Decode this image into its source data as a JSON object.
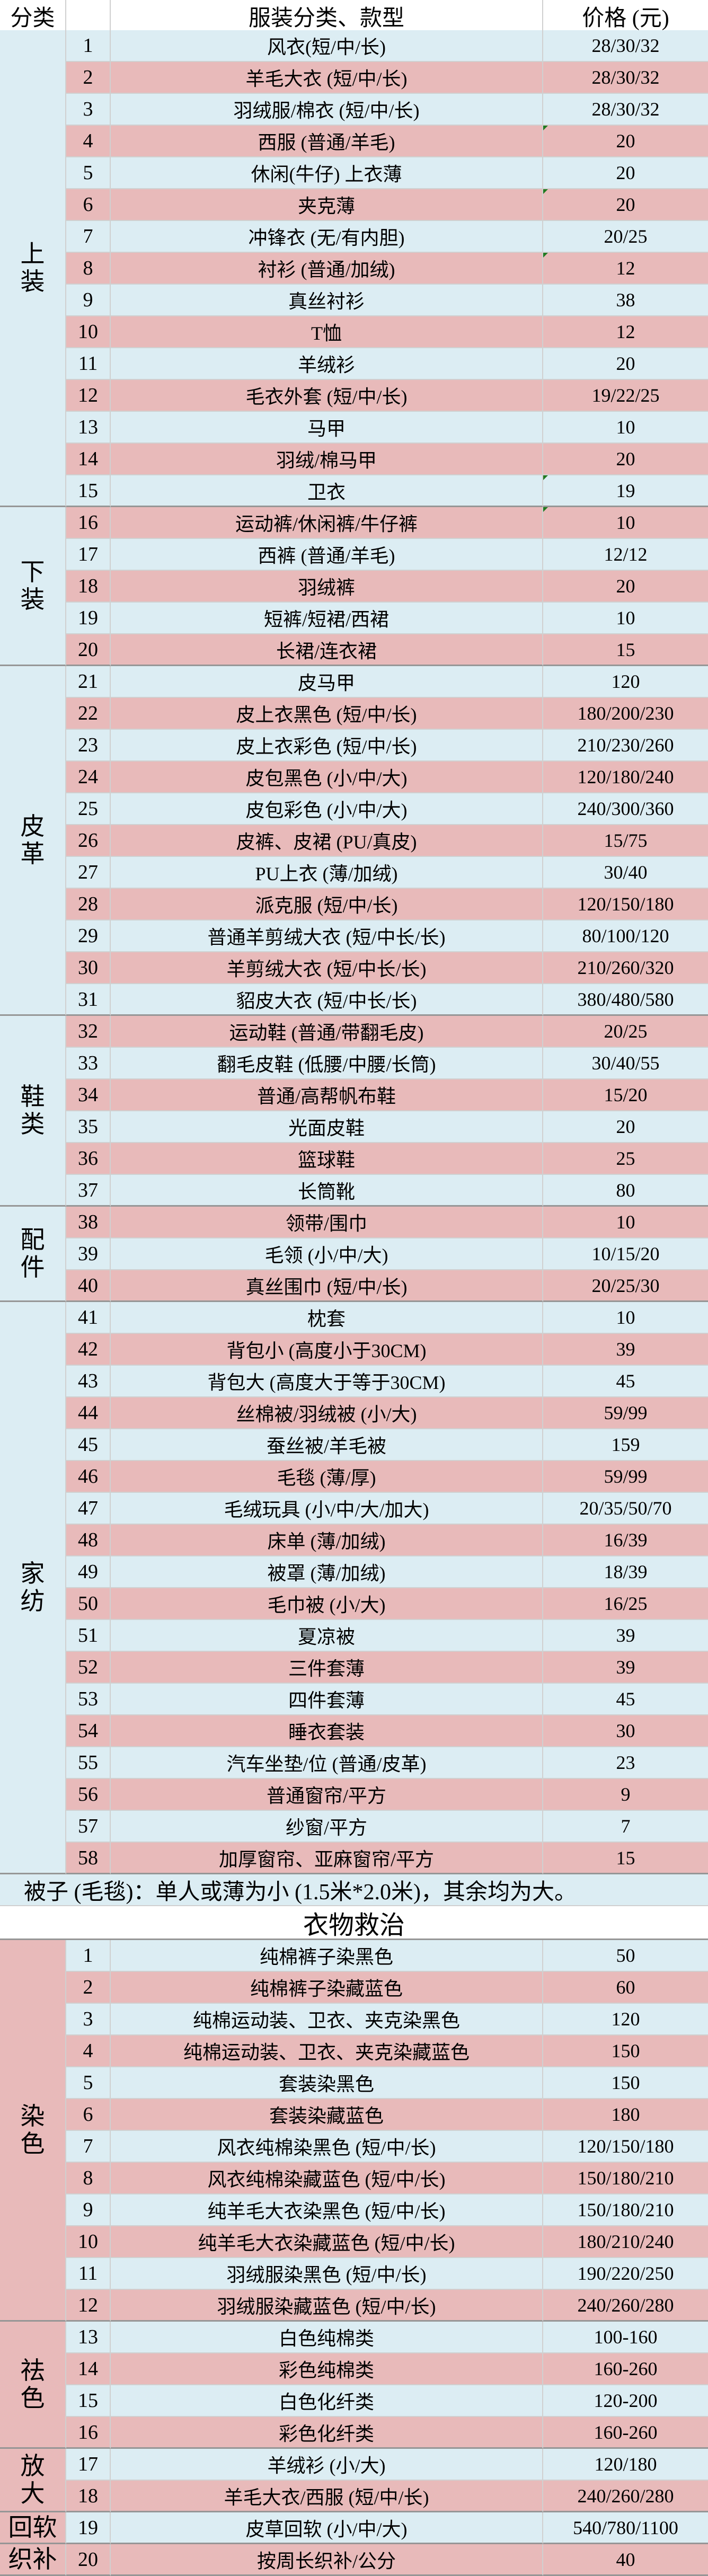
{
  "header": {
    "category": "分类",
    "number": "",
    "item": "服装分类、款型",
    "price": "价格 (元)"
  },
  "note": "被子 (毛毯)：单人或薄为小 (1.5米*2.0米)，其余均为大。",
  "rescue_title": "衣物救治",
  "flagged_rows": [
    4,
    6,
    8,
    15,
    16
  ],
  "colors": {
    "row_pink": "#e8baba",
    "row_blue": "#dcedf3",
    "grid_line": "#d0d0d0",
    "group_line": "#969696",
    "header_line": "#4a4a4a",
    "header_bg": "#ffffff",
    "flag_green": "#217a21",
    "text": "#000000"
  },
  "sections": [
    {
      "id": "main",
      "category_color": "blue",
      "groups": [
        {
          "label": "上装",
          "rows": [
            {
              "no": "1",
              "item": "风衣(短/中/长)",
              "price": "28/30/32"
            },
            {
              "no": "2",
              "item": "羊毛大衣 (短/中/长)",
              "price": "28/30/32"
            },
            {
              "no": "3",
              "item": "羽绒服/棉衣 (短/中/长)",
              "price": "28/30/32"
            },
            {
              "no": "4",
              "item": "西服 (普通/羊毛)",
              "price": "20"
            },
            {
              "no": "5",
              "item": "休闲(牛仔) 上衣薄",
              "price": "20"
            },
            {
              "no": "6",
              "item": "夹克薄",
              "price": "20"
            },
            {
              "no": "7",
              "item": "冲锋衣 (无/有内胆)",
              "price": "20/25"
            },
            {
              "no": "8",
              "item": "衬衫 (普通/加绒)",
              "price": "12"
            },
            {
              "no": "9",
              "item": "真丝衬衫",
              "price": "38"
            },
            {
              "no": "10",
              "item": "T恤",
              "price": "12"
            },
            {
              "no": "11",
              "item": "羊绒衫",
              "price": "20"
            },
            {
              "no": "12",
              "item": "毛衣外套 (短/中/长)",
              "price": "19/22/25"
            },
            {
              "no": "13",
              "item": "马甲",
              "price": "10"
            },
            {
              "no": "14",
              "item": "羽绒/棉马甲",
              "price": "20"
            },
            {
              "no": "15",
              "item": "卫衣",
              "price": "19"
            }
          ]
        },
        {
          "label": "下装",
          "rows": [
            {
              "no": "16",
              "item": "运动裤/休闲裤/牛仔裤",
              "price": "10"
            },
            {
              "no": "17",
              "item": "西裤 (普通/羊毛)",
              "price": "12/12"
            },
            {
              "no": "18",
              "item": "羽绒裤",
              "price": "20"
            },
            {
              "no": "19",
              "item": "短裤/短裙/西裙",
              "price": "10"
            },
            {
              "no": "20",
              "item": "长裙/连衣裙",
              "price": "15"
            }
          ]
        },
        {
          "label": "皮革",
          "rows": [
            {
              "no": "21",
              "item": "皮马甲",
              "price": "120"
            },
            {
              "no": "22",
              "item": "皮上衣黑色 (短/中/长)",
              "price": "180/200/230"
            },
            {
              "no": "23",
              "item": "皮上衣彩色 (短/中/长)",
              "price": "210/230/260"
            },
            {
              "no": "24",
              "item": "皮包黑色 (小/中/大)",
              "price": "120/180/240"
            },
            {
              "no": "25",
              "item": "皮包彩色 (小/中/大)",
              "price": "240/300/360"
            },
            {
              "no": "26",
              "item": "皮裤、皮裙 (PU/真皮)",
              "price": "15/75"
            },
            {
              "no": "27",
              "item": "PU上衣 (薄/加绒)",
              "price": "30/40"
            },
            {
              "no": "28",
              "item": "派克服 (短/中/长)",
              "price": "120/150/180"
            },
            {
              "no": "29",
              "item": "普通羊剪绒大衣 (短/中长/长)",
              "price": "80/100/120"
            },
            {
              "no": "30",
              "item": "羊剪绒大衣 (短/中长/长)",
              "price": "210/260/320"
            },
            {
              "no": "31",
              "item": "貂皮大衣 (短/中长/长)",
              "price": "380/480/580"
            }
          ]
        },
        {
          "label": "鞋类",
          "rows": [
            {
              "no": "32",
              "item": "运动鞋 (普通/带翻毛皮)",
              "price": "20/25"
            },
            {
              "no": "33",
              "item": "翻毛皮鞋 (低腰/中腰/长筒)",
              "price": "30/40/55"
            },
            {
              "no": "34",
              "item": "普通/高帮帆布鞋",
              "price": "15/20"
            },
            {
              "no": "35",
              "item": "光面皮鞋",
              "price": "20"
            },
            {
              "no": "36",
              "item": "篮球鞋",
              "price": "25"
            },
            {
              "no": "37",
              "item": "长筒靴",
              "price": "80"
            }
          ]
        },
        {
          "label": "配件",
          "rows": [
            {
              "no": "38",
              "item": "领带/围巾",
              "price": "10"
            },
            {
              "no": "39",
              "item": "毛领 (小/中/大)",
              "price": "10/15/20"
            },
            {
              "no": "40",
              "item": "真丝围巾 (短/中/长)",
              "price": "20/25/30"
            }
          ]
        },
        {
          "label": "家纺",
          "rows": [
            {
              "no": "41",
              "item": "枕套",
              "price": "10"
            },
            {
              "no": "42",
              "item": "背包小 (高度小于30CM)",
              "price": "39"
            },
            {
              "no": "43",
              "item": "背包大 (高度大于等于30CM)",
              "price": "45"
            },
            {
              "no": "44",
              "item": "丝棉被/羽绒被 (小/大)",
              "price": "59/99"
            },
            {
              "no": "45",
              "item": "蚕丝被/羊毛被",
              "price": "159"
            },
            {
              "no": "46",
              "item": "毛毯 (薄/厚)",
              "price": "59/99"
            },
            {
              "no": "47",
              "item": "毛绒玩具 (小/中/大/加大)",
              "price": "20/35/50/70"
            },
            {
              "no": "48",
              "item": "床单 (薄/加绒)",
              "price": "16/39"
            },
            {
              "no": "49",
              "item": "被罩 (薄/加绒)",
              "price": "18/39"
            },
            {
              "no": "50",
              "item": "毛巾被 (小/大)",
              "price": "16/25"
            },
            {
              "no": "51",
              "item": "夏凉被",
              "price": "39"
            },
            {
              "no": "52",
              "item": "三件套薄",
              "price": "39"
            },
            {
              "no": "53",
              "item": "四件套薄",
              "price": "45"
            },
            {
              "no": "54",
              "item": "睡衣套装",
              "price": "30"
            },
            {
              "no": "55",
              "item": "汽车坐垫/位 (普通/皮革)",
              "price": "23"
            },
            {
              "no": "56",
              "item": "普通窗帘/平方",
              "price": "9"
            },
            {
              "no": "57",
              "item": "纱窗/平方",
              "price": "7"
            },
            {
              "no": "58",
              "item": "加厚窗帘、亚麻窗帘/平方",
              "price": "15"
            }
          ]
        }
      ]
    },
    {
      "id": "rescue",
      "category_color": "pink",
      "groups": [
        {
          "label": "染色",
          "rows": [
            {
              "no": "1",
              "item": "纯棉裤子染黑色",
              "price": "50"
            },
            {
              "no": "2",
              "item": "纯棉裤子染藏蓝色",
              "price": "60"
            },
            {
              "no": "3",
              "item": "纯棉运动装、卫衣、夹克染黑色",
              "price": "120"
            },
            {
              "no": "4",
              "item": "纯棉运动装、卫衣、夹克染藏蓝色",
              "price": "150"
            },
            {
              "no": "5",
              "item": "套装染黑色",
              "price": "150"
            },
            {
              "no": "6",
              "item": "套装染藏蓝色",
              "price": "180"
            },
            {
              "no": "7",
              "item": "风衣纯棉染黑色 (短/中/长)",
              "price": "120/150/180"
            },
            {
              "no": "8",
              "item": "风衣纯棉染藏蓝色 (短/中/长)",
              "price": "150/180/210"
            },
            {
              "no": "9",
              "item": "纯羊毛大衣染黑色 (短/中/长)",
              "price": "150/180/210"
            },
            {
              "no": "10",
              "item": "纯羊毛大衣染藏蓝色 (短/中/长)",
              "price": "180/210/240"
            },
            {
              "no": "11",
              "item": "羽绒服染黑色 (短/中/长)",
              "price": "190/220/250"
            },
            {
              "no": "12",
              "item": "羽绒服染藏蓝色 (短/中/长)",
              "price": "240/260/280"
            }
          ]
        },
        {
          "label": "祛色",
          "rows": [
            {
              "no": "13",
              "item": "白色纯棉类",
              "price": "100-160"
            },
            {
              "no": "14",
              "item": "彩色纯棉类",
              "price": "160-260"
            },
            {
              "no": "15",
              "item": "白色化纤类",
              "price": "120-200"
            },
            {
              "no": "16",
              "item": "彩色化纤类",
              "price": "160-260"
            }
          ]
        },
        {
          "label": "放大",
          "rows": [
            {
              "no": "17",
              "item": "羊绒衫 (小/大)",
              "price": "120/180"
            },
            {
              "no": "18",
              "item": "羊毛大衣/西服 (短/中/长)",
              "price": "240/260/280"
            }
          ]
        },
        {
          "label": "回软",
          "rows": [
            {
              "no": "19",
              "item": "皮草回软 (小/中/大)",
              "price": "540/780/1100"
            }
          ]
        },
        {
          "label": "织补",
          "rows": [
            {
              "no": "20",
              "item": "按周长织补/公分",
              "price": "40"
            }
          ]
        }
      ]
    }
  ]
}
